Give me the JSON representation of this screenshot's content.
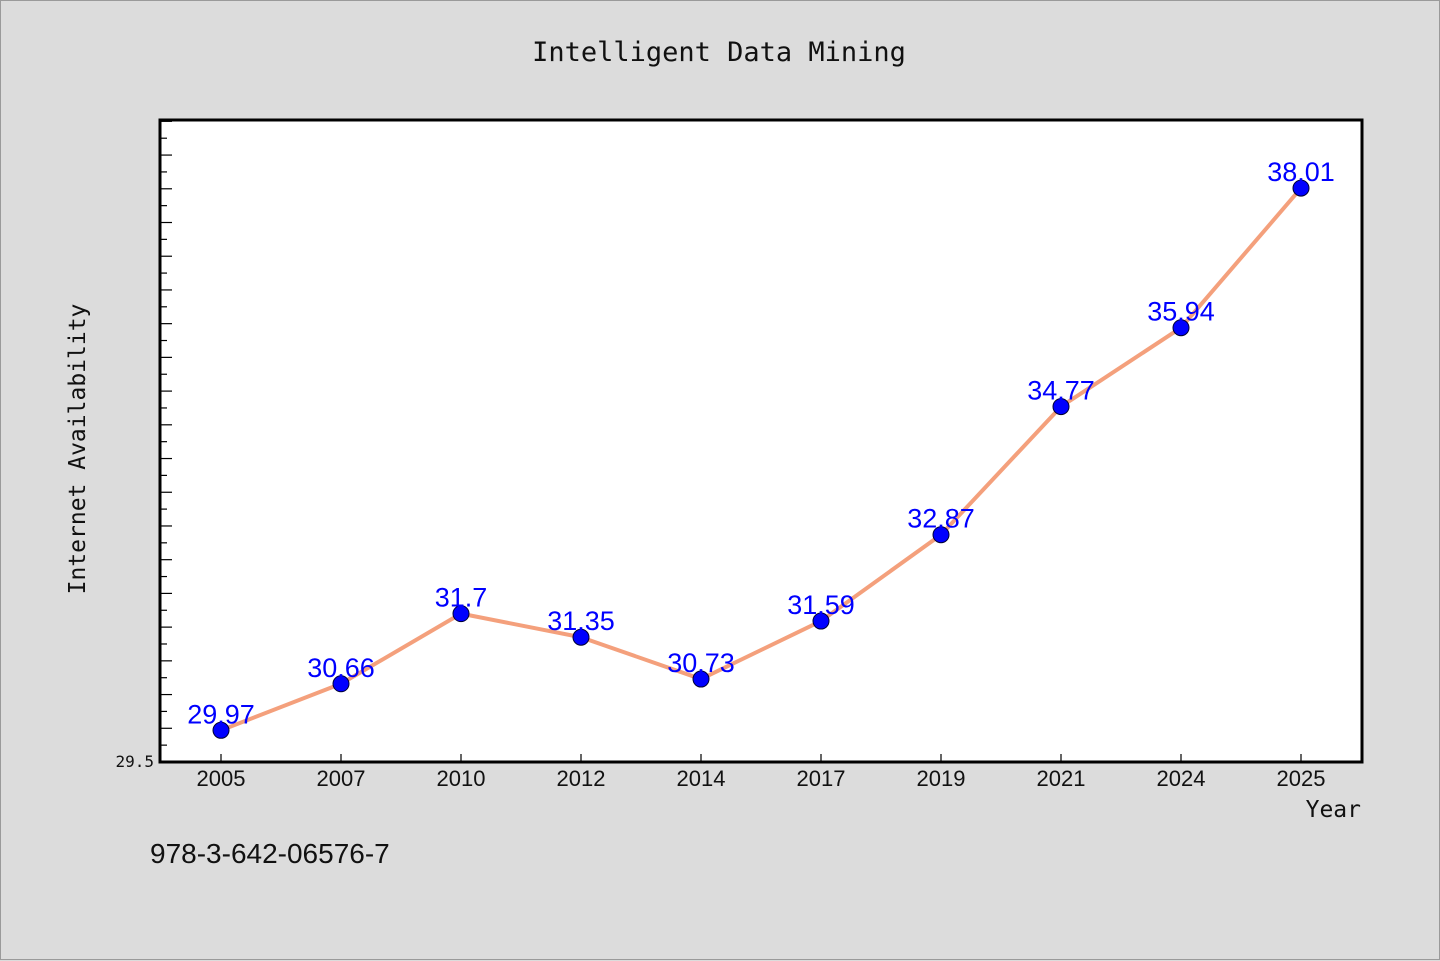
{
  "chart_data": {
    "type": "line",
    "title": "Intelligent Data Mining",
    "xlabel": "Year",
    "ylabel": "Internet Availability",
    "categories": [
      "2005",
      "2007",
      "2010",
      "2012",
      "2014",
      "2017",
      "2019",
      "2021",
      "2024",
      "2025"
    ],
    "values": [
      29.97,
      30.66,
      31.7,
      31.35,
      30.73,
      31.59,
      32.87,
      34.77,
      35.94,
      38.01
    ],
    "data_labels": [
      "29.97",
      "30.66",
      "31.7",
      "31.35",
      "30.73",
      "31.59",
      "32.87",
      "34.77",
      "35.94",
      "38.01"
    ],
    "ylim": [
      29.5,
      39.02
    ],
    "y_tick_labels": [
      "29.5"
    ],
    "grid": false,
    "line_color": "#f4a07c",
    "marker_color": "#0000ff",
    "label_color": "#0000ff"
  },
  "footer": {
    "isbn": "978-3-642-06576-7"
  }
}
